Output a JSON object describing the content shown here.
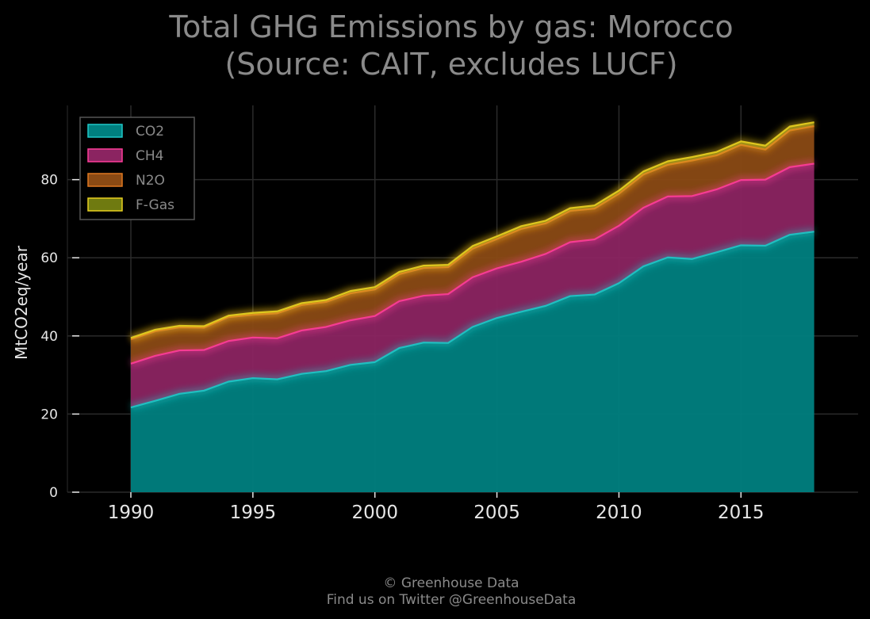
{
  "chart_data": {
    "type": "area",
    "stacked": true,
    "title": [
      "Total GHG Emissions by gas: Morocco",
      "(Source: CAIT, excludes LUCF)"
    ],
    "xlabel": "",
    "ylabel": "MtCO2eq/year",
    "xlim": [
      1987.4,
      2019.8
    ],
    "ylim": [
      0,
      99
    ],
    "x_ticks": [
      1990,
      1995,
      2000,
      2005,
      2010,
      2015
    ],
    "y_ticks": [
      0,
      20,
      40,
      60,
      80
    ],
    "grid": true,
    "legend_position": "top-left",
    "x": [
      1990,
      1991,
      1992,
      1993,
      1994,
      1995,
      1996,
      1997,
      1998,
      1999,
      2000,
      2001,
      2002,
      2003,
      2004,
      2005,
      2006,
      2007,
      2008,
      2009,
      2010,
      2011,
      2012,
      2013,
      2014,
      2015,
      2016,
      2017,
      2018
    ],
    "series": [
      {
        "name": "CO2",
        "color": "#008080",
        "edge": "#1fc8c8",
        "values": [
          21.7,
          23.4,
          25.2,
          26.0,
          28.3,
          29.2,
          28.9,
          30.3,
          31.0,
          32.6,
          33.3,
          36.9,
          38.3,
          38.2,
          42.3,
          44.6,
          46.2,
          47.7,
          50.2,
          50.6,
          53.5,
          57.8,
          60.1,
          59.7,
          61.4,
          63.2,
          63.1,
          65.9,
          66.7
        ]
      },
      {
        "name": "CH4",
        "color": "#8b2461",
        "edge": "#ff3d9a",
        "values": [
          11.2,
          11.5,
          11.1,
          10.4,
          10.4,
          10.4,
          10.5,
          11.1,
          11.3,
          11.4,
          11.8,
          12.0,
          12.0,
          12.5,
          12.7,
          12.7,
          12.8,
          13.3,
          13.8,
          14.1,
          14.7,
          15.0,
          15.6,
          16.1,
          16.1,
          16.7,
          16.9,
          17.3,
          17.4
        ]
      },
      {
        "name": "N2O",
        "color": "#8a4a14",
        "edge": "#e07820",
        "values": [
          6.2,
          6.3,
          5.9,
          5.7,
          6.1,
          5.8,
          6.4,
          6.5,
          6.4,
          6.9,
          6.8,
          6.9,
          7.1,
          6.9,
          7.3,
          7.5,
          8.4,
          7.8,
          8.0,
          7.9,
          8.2,
          8.5,
          8.1,
          9.1,
          8.7,
          9.0,
          7.7,
          9.4,
          9.6
        ]
      },
      {
        "name": "F-Gas",
        "color": "#6f7a10",
        "edge": "#e8d020",
        "values": [
          0.4,
          0.4,
          0.4,
          0.4,
          0.4,
          0.5,
          0.5,
          0.5,
          0.5,
          0.6,
          0.6,
          0.6,
          0.6,
          0.6,
          0.7,
          0.7,
          0.7,
          0.7,
          0.7,
          0.8,
          0.8,
          0.8,
          0.9,
          0.9,
          0.9,
          0.9,
          1.0,
          1.0,
          1.0
        ]
      }
    ]
  },
  "footer": {
    "line1": "© Greenhouse Data",
    "line2": "Find us on Twitter @GreenhouseData"
  },
  "theme": {
    "background": "#000000",
    "grid_color": "#2b2b2b",
    "text_color": "#e6e6e6",
    "muted_text_color": "#8a8a8a"
  }
}
